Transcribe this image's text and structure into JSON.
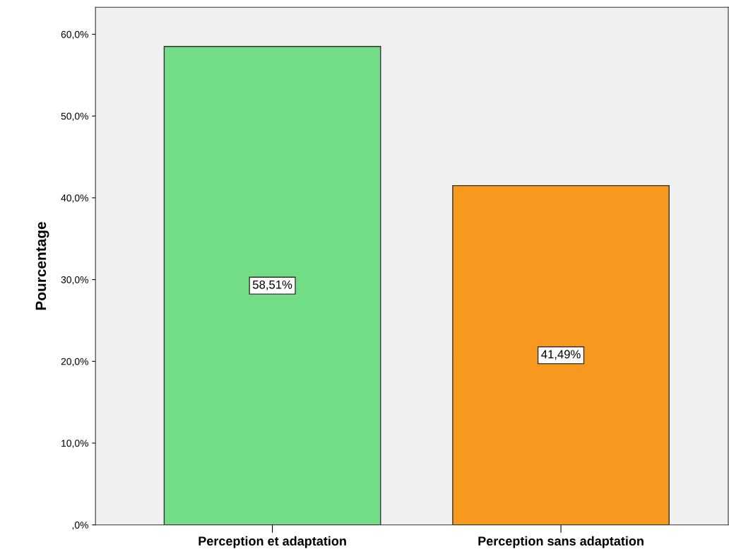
{
  "chart_data": {
    "type": "bar",
    "ylabel": "Pourcentage",
    "categories": [
      "Perception et adaptation",
      "Perception sans adaptation"
    ],
    "values": [
      58.51,
      41.49
    ],
    "colors": [
      "#72dd86",
      "#f7991e"
    ],
    "value_labels": [
      "58,51%",
      "41,49%"
    ],
    "ylim": [
      0,
      63.3
    ],
    "yticks": [
      {
        "value": 0,
        "label": ",0%"
      },
      {
        "value": 10,
        "label": "10,0%"
      },
      {
        "value": 20,
        "label": "20,0%"
      },
      {
        "value": 30,
        "label": "30,0%"
      },
      {
        "value": 40,
        "label": "40,0%"
      },
      {
        "value": 50,
        "label": "50,0%"
      },
      {
        "value": 60,
        "label": "60,0%"
      }
    ],
    "grid": false,
    "legend": false
  }
}
